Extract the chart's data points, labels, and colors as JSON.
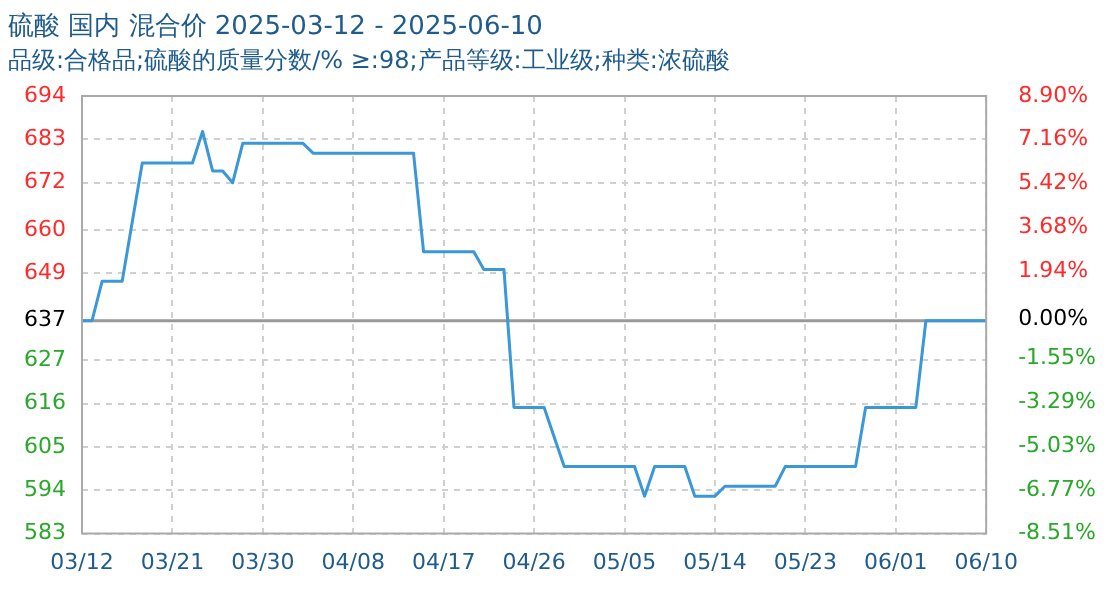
{
  "chart_data": {
    "type": "line",
    "title": "硫酸 国内 混合价 2025-03-12 - 2025-06-10",
    "subtitle": "品级:合格品;硫酸的质量分数/% ≥:98;产品等级:工业级;种类:浓硫酸",
    "x": [
      "2025-03-12",
      "2025-03-13",
      "2025-03-14",
      "2025-03-16",
      "2025-03-18",
      "2025-03-23",
      "2025-03-24",
      "2025-03-25",
      "2025-03-26",
      "2025-03-27",
      "2025-03-28",
      "2025-04-03",
      "2025-04-04",
      "2025-04-14",
      "2025-04-15",
      "2025-04-20",
      "2025-04-21",
      "2025-04-23",
      "2025-04-24",
      "2025-04-27",
      "2025-04-29",
      "2025-05-06",
      "2025-05-07",
      "2025-05-08",
      "2025-05-11",
      "2025-05-12",
      "2025-05-14",
      "2025-05-15",
      "2025-05-20",
      "2025-05-21",
      "2025-05-28",
      "2025-05-29",
      "2025-06-03",
      "2025-06-04",
      "2025-06-10"
    ],
    "series": [
      {
        "color": "#3a98d8",
        "values": [
          637,
          637,
          647,
          647,
          677,
          677,
          685,
          675,
          675,
          672,
          682,
          682,
          679.5,
          679.5,
          654.5,
          654.5,
          650,
          650,
          615,
          615,
          600,
          600,
          592.5,
          600,
          600,
          592.5,
          592.5,
          595,
          595,
          600,
          600,
          615,
          615,
          637,
          637
        ]
      }
    ],
    "xlim": [
      "2025-03-12",
      "2025-06-10"
    ],
    "xticks": [
      {
        "value": "2025-03-12",
        "label": "03/12"
      },
      {
        "value": "2025-03-21",
        "label": "03/21"
      },
      {
        "value": "2025-03-30",
        "label": "03/30"
      },
      {
        "value": "2025-04-08",
        "label": "04/08"
      },
      {
        "value": "2025-04-17",
        "label": "04/17"
      },
      {
        "value": "2025-04-26",
        "label": "04/26"
      },
      {
        "value": "2025-05-05",
        "label": "05/05"
      },
      {
        "value": "2025-05-14",
        "label": "05/14"
      },
      {
        "value": "2025-05-23",
        "label": "05/23"
      },
      {
        "value": "2025-06-01",
        "label": "06/01"
      },
      {
        "value": "2025-06-10",
        "label": "06/10"
      }
    ],
    "ylim": [
      583,
      694
    ],
    "yticks": [
      583,
      594,
      605,
      616,
      627,
      637,
      649,
      660,
      672,
      683,
      694
    ],
    "y2lim": [
      -8.51,
      8.9
    ],
    "y2ticks": [
      {
        "value": -8.51,
        "label": "-8.51%"
      },
      {
        "value": -6.77,
        "label": "-6.77%"
      },
      {
        "value": -5.03,
        "label": "-5.03%"
      },
      {
        "value": -3.29,
        "label": "-3.29%"
      },
      {
        "value": -1.55,
        "label": "-1.55%"
      },
      {
        "value": 0,
        "label": "0.00%"
      },
      {
        "value": 1.94,
        "label": "1.94%"
      },
      {
        "value": 3.68,
        "label": "3.68%"
      },
      {
        "value": 5.42,
        "label": "5.42%"
      },
      {
        "value": 7.16,
        "label": "7.16%"
      },
      {
        "value": 8.9,
        "label": "8.90%"
      }
    ],
    "ref_lines": [
      {
        "axis": "y",
        "value": 637,
        "color": "#999999"
      }
    ],
    "grid": true,
    "legend": false,
    "marker": "none",
    "line_style": "solid"
  }
}
